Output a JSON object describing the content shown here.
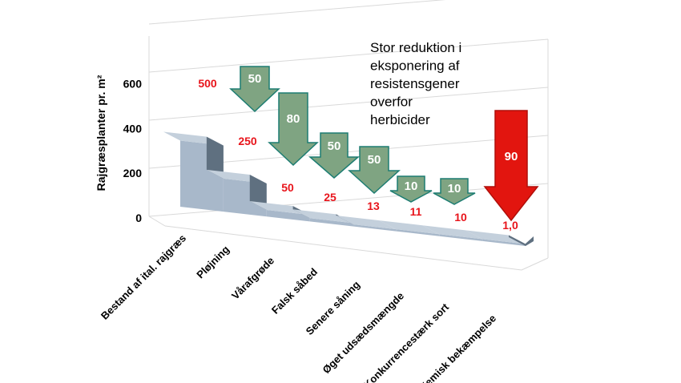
{
  "chart_data": {
    "type": "bar",
    "style": "3d-step",
    "ylabel": "Rajgræsplanter pr. m²",
    "ylim": [
      0,
      600
    ],
    "yticks": [
      "0",
      "200",
      "400",
      "600"
    ],
    "grid": true,
    "categories": [
      "Bestand af ital. rajgræs",
      "Pløjning",
      "Vårafgrøde",
      "Falsk såbed",
      "Senere såning",
      "Øget udsædsmængde",
      "Konkurrencestærk sort",
      "Kemisk bekæmpelse"
    ],
    "values": [
      500,
      250,
      50,
      25,
      13,
      11,
      10,
      1.0
    ],
    "value_labels": [
      "500",
      "250",
      "50",
      "25",
      "13",
      "11",
      "10",
      "1,0"
    ],
    "reductions": [
      {
        "label": "50",
        "color": "#7fa482"
      },
      {
        "label": "80",
        "color": "#7fa482"
      },
      {
        "label": "50",
        "color": "#7fa482"
      },
      {
        "label": "50",
        "color": "#7fa482"
      },
      {
        "label": "10",
        "color": "#7fa482"
      },
      {
        "label": "10",
        "color": "#7fa482"
      },
      {
        "label": "90",
        "color": "#e2150f"
      }
    ],
    "annotation": "Stor reduktion i eksponering af resistensgener overfor herbicider",
    "colors": {
      "bar_front": "#a8b8ca",
      "bar_top": "#c4d0dc",
      "bar_side": "#5f7080",
      "value_label": "#e8141b",
      "arrow_outline": "#1d7d72"
    }
  }
}
